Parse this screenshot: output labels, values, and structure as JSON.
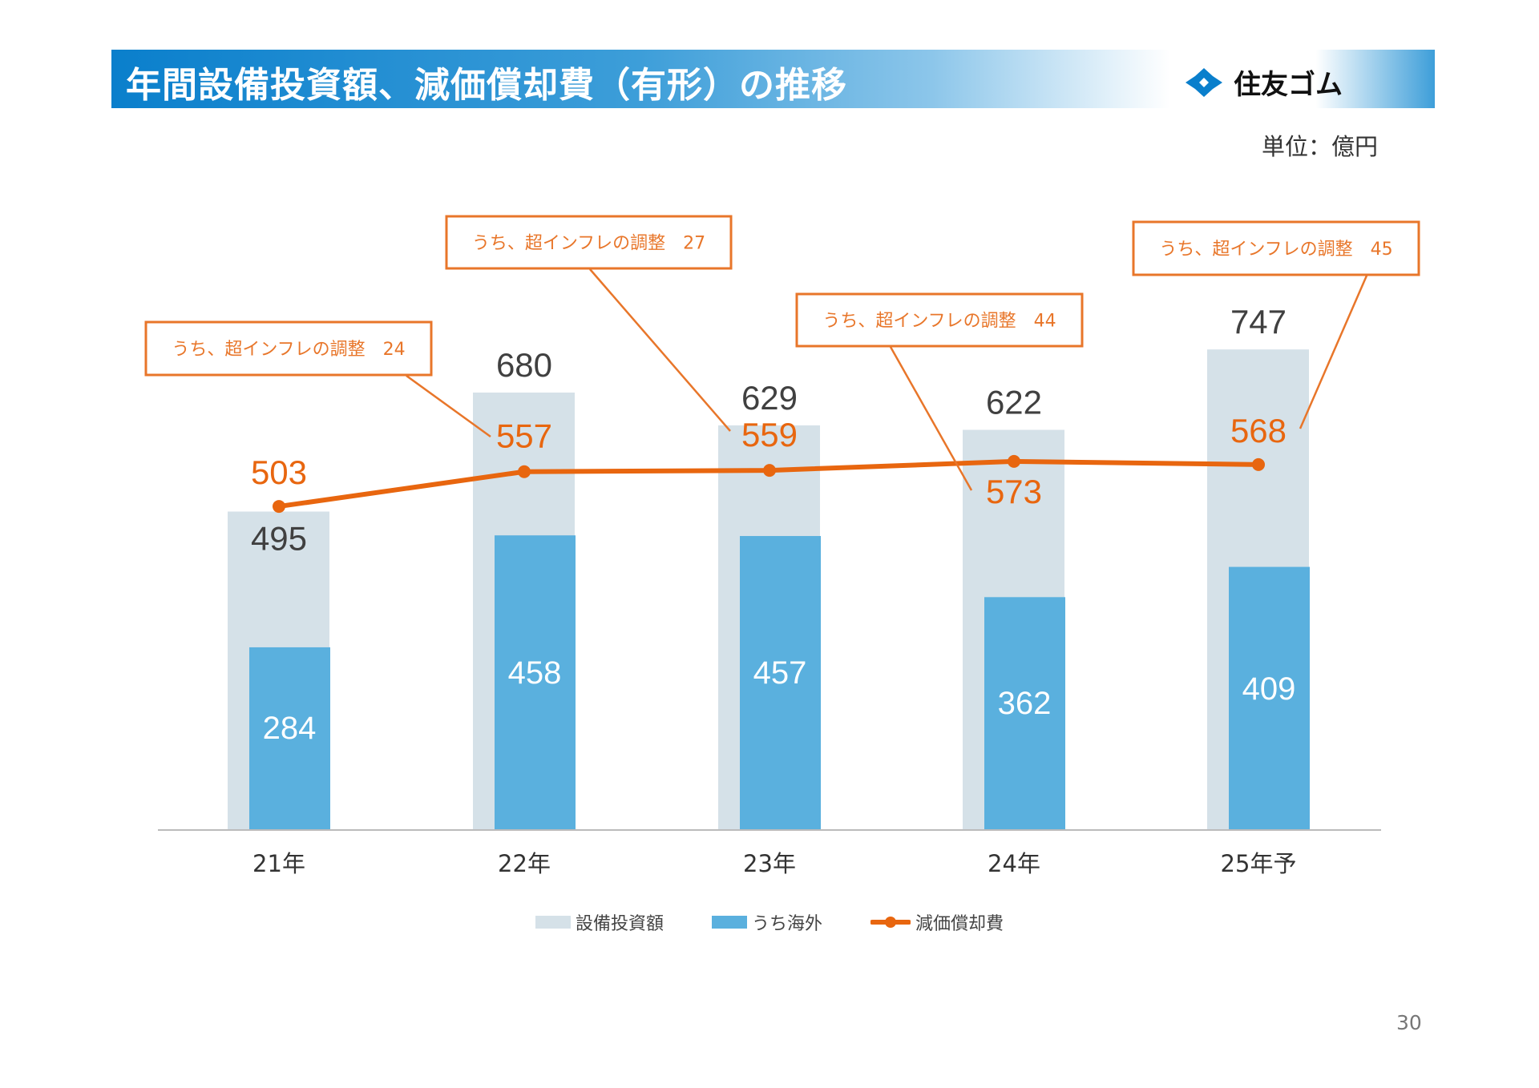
{
  "header": {
    "title": "年間設備投資額、減価償却費（有形）の推移",
    "logo_text": "住友ゴム"
  },
  "unit_label": "単位：億円",
  "page_number": "30",
  "colors": {
    "capex": "#d5e1e8",
    "overseas": "#5ab0de",
    "depreciation": "#e8660f",
    "callout": "#e8762a",
    "text": "#404040"
  },
  "chart_data": {
    "type": "bar+line",
    "categories": [
      "21年",
      "22年",
      "23年",
      "24年",
      "25年予"
    ],
    "series": [
      {
        "name": "設備投資額",
        "type": "bar",
        "values": [
          495,
          680,
          629,
          622,
          747
        ]
      },
      {
        "name": "うち海外",
        "type": "bar",
        "values": [
          284,
          458,
          457,
          362,
          409
        ]
      },
      {
        "name": "減価償却費",
        "type": "line",
        "values": [
          503,
          557,
          559,
          573,
          568
        ]
      }
    ],
    "annotations": [
      {
        "category": "21年",
        "text": "うち、超インフレの調整　24"
      },
      {
        "category": "22年",
        "text": "うち、超インフレの調整　27"
      },
      {
        "category": "24年",
        "text": "うち、超インフレの調整　44"
      },
      {
        "category": "25年予",
        "text": "うち、超インフレの調整　45"
      }
    ],
    "ylim": [
      0,
      800
    ],
    "grid": false,
    "legend": "bottom"
  }
}
